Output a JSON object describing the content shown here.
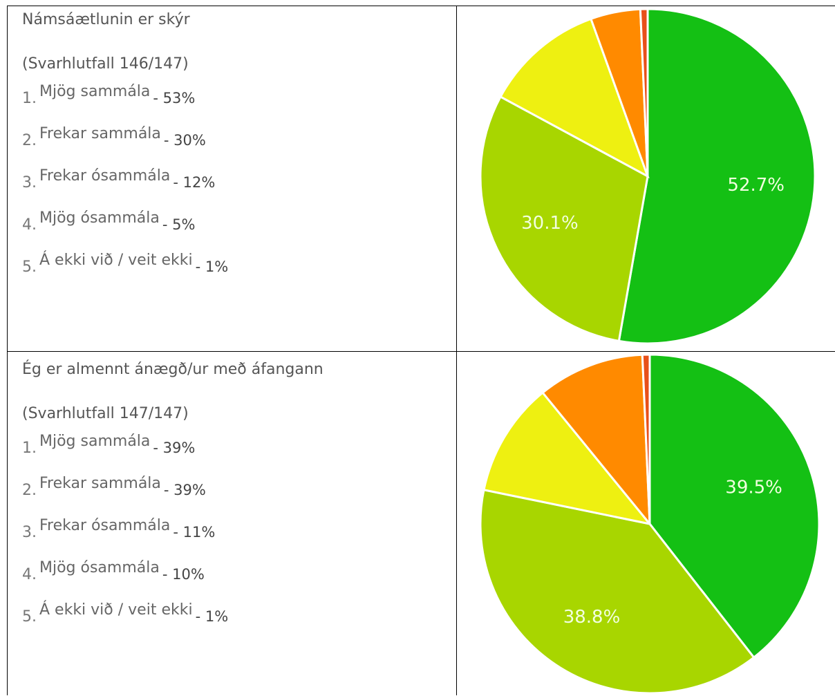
{
  "rows": [
    {
      "title": "Námsáætlunin er skýr",
      "response": "(Svarhlutfall 146/147)",
      "items": [
        {
          "num": "1.",
          "label": "Mjög sammála",
          "share": "- 53%"
        },
        {
          "num": "2.",
          "label": "Frekar sammála",
          "share": "- 30%"
        },
        {
          "num": "3.",
          "label": "Frekar ósammála",
          "share": "- 12%"
        },
        {
          "num": "4.",
          "label": "Mjög ósammála",
          "share": "- 5%"
        },
        {
          "num": "5.",
          "label": "Á ekki við / veit ekki",
          "share": "- 1%"
        }
      ]
    },
    {
      "title": "Ég er almennt ánægð/ur með áfangann",
      "response": "(Svarhlutfall 147/147)",
      "items": [
        {
          "num": "1.",
          "label": "Mjög sammála",
          "share": "- 39%"
        },
        {
          "num": "2.",
          "label": "Frekar sammála",
          "share": "- 39%"
        },
        {
          "num": "3.",
          "label": "Frekar ósammála",
          "share": "- 11%"
        },
        {
          "num": "4.",
          "label": "Mjög ósammála",
          "share": "- 10%"
        },
        {
          "num": "5.",
          "label": "Á ekki við / veit ekki",
          "share": "- 1%"
        }
      ]
    }
  ],
  "chart_data": [
    {
      "type": "pie",
      "values": [
        52.7,
        30.1,
        11.6,
        4.8,
        0.7
      ],
      "value_labels": [
        "52.7%",
        "30.1%",
        null,
        null,
        null
      ],
      "colors": [
        "#14c014",
        "#a8d600",
        "#eef011",
        "#ff8a00",
        "#e8501a"
      ]
    },
    {
      "type": "pie",
      "values": [
        39.5,
        38.8,
        10.9,
        10.2,
        0.7
      ],
      "value_labels": [
        "39.5%",
        "38.8%",
        null,
        null,
        null
      ],
      "colors": [
        "#14c014",
        "#a8d600",
        "#eef011",
        "#ff8a00",
        "#e8501a"
      ]
    }
  ]
}
